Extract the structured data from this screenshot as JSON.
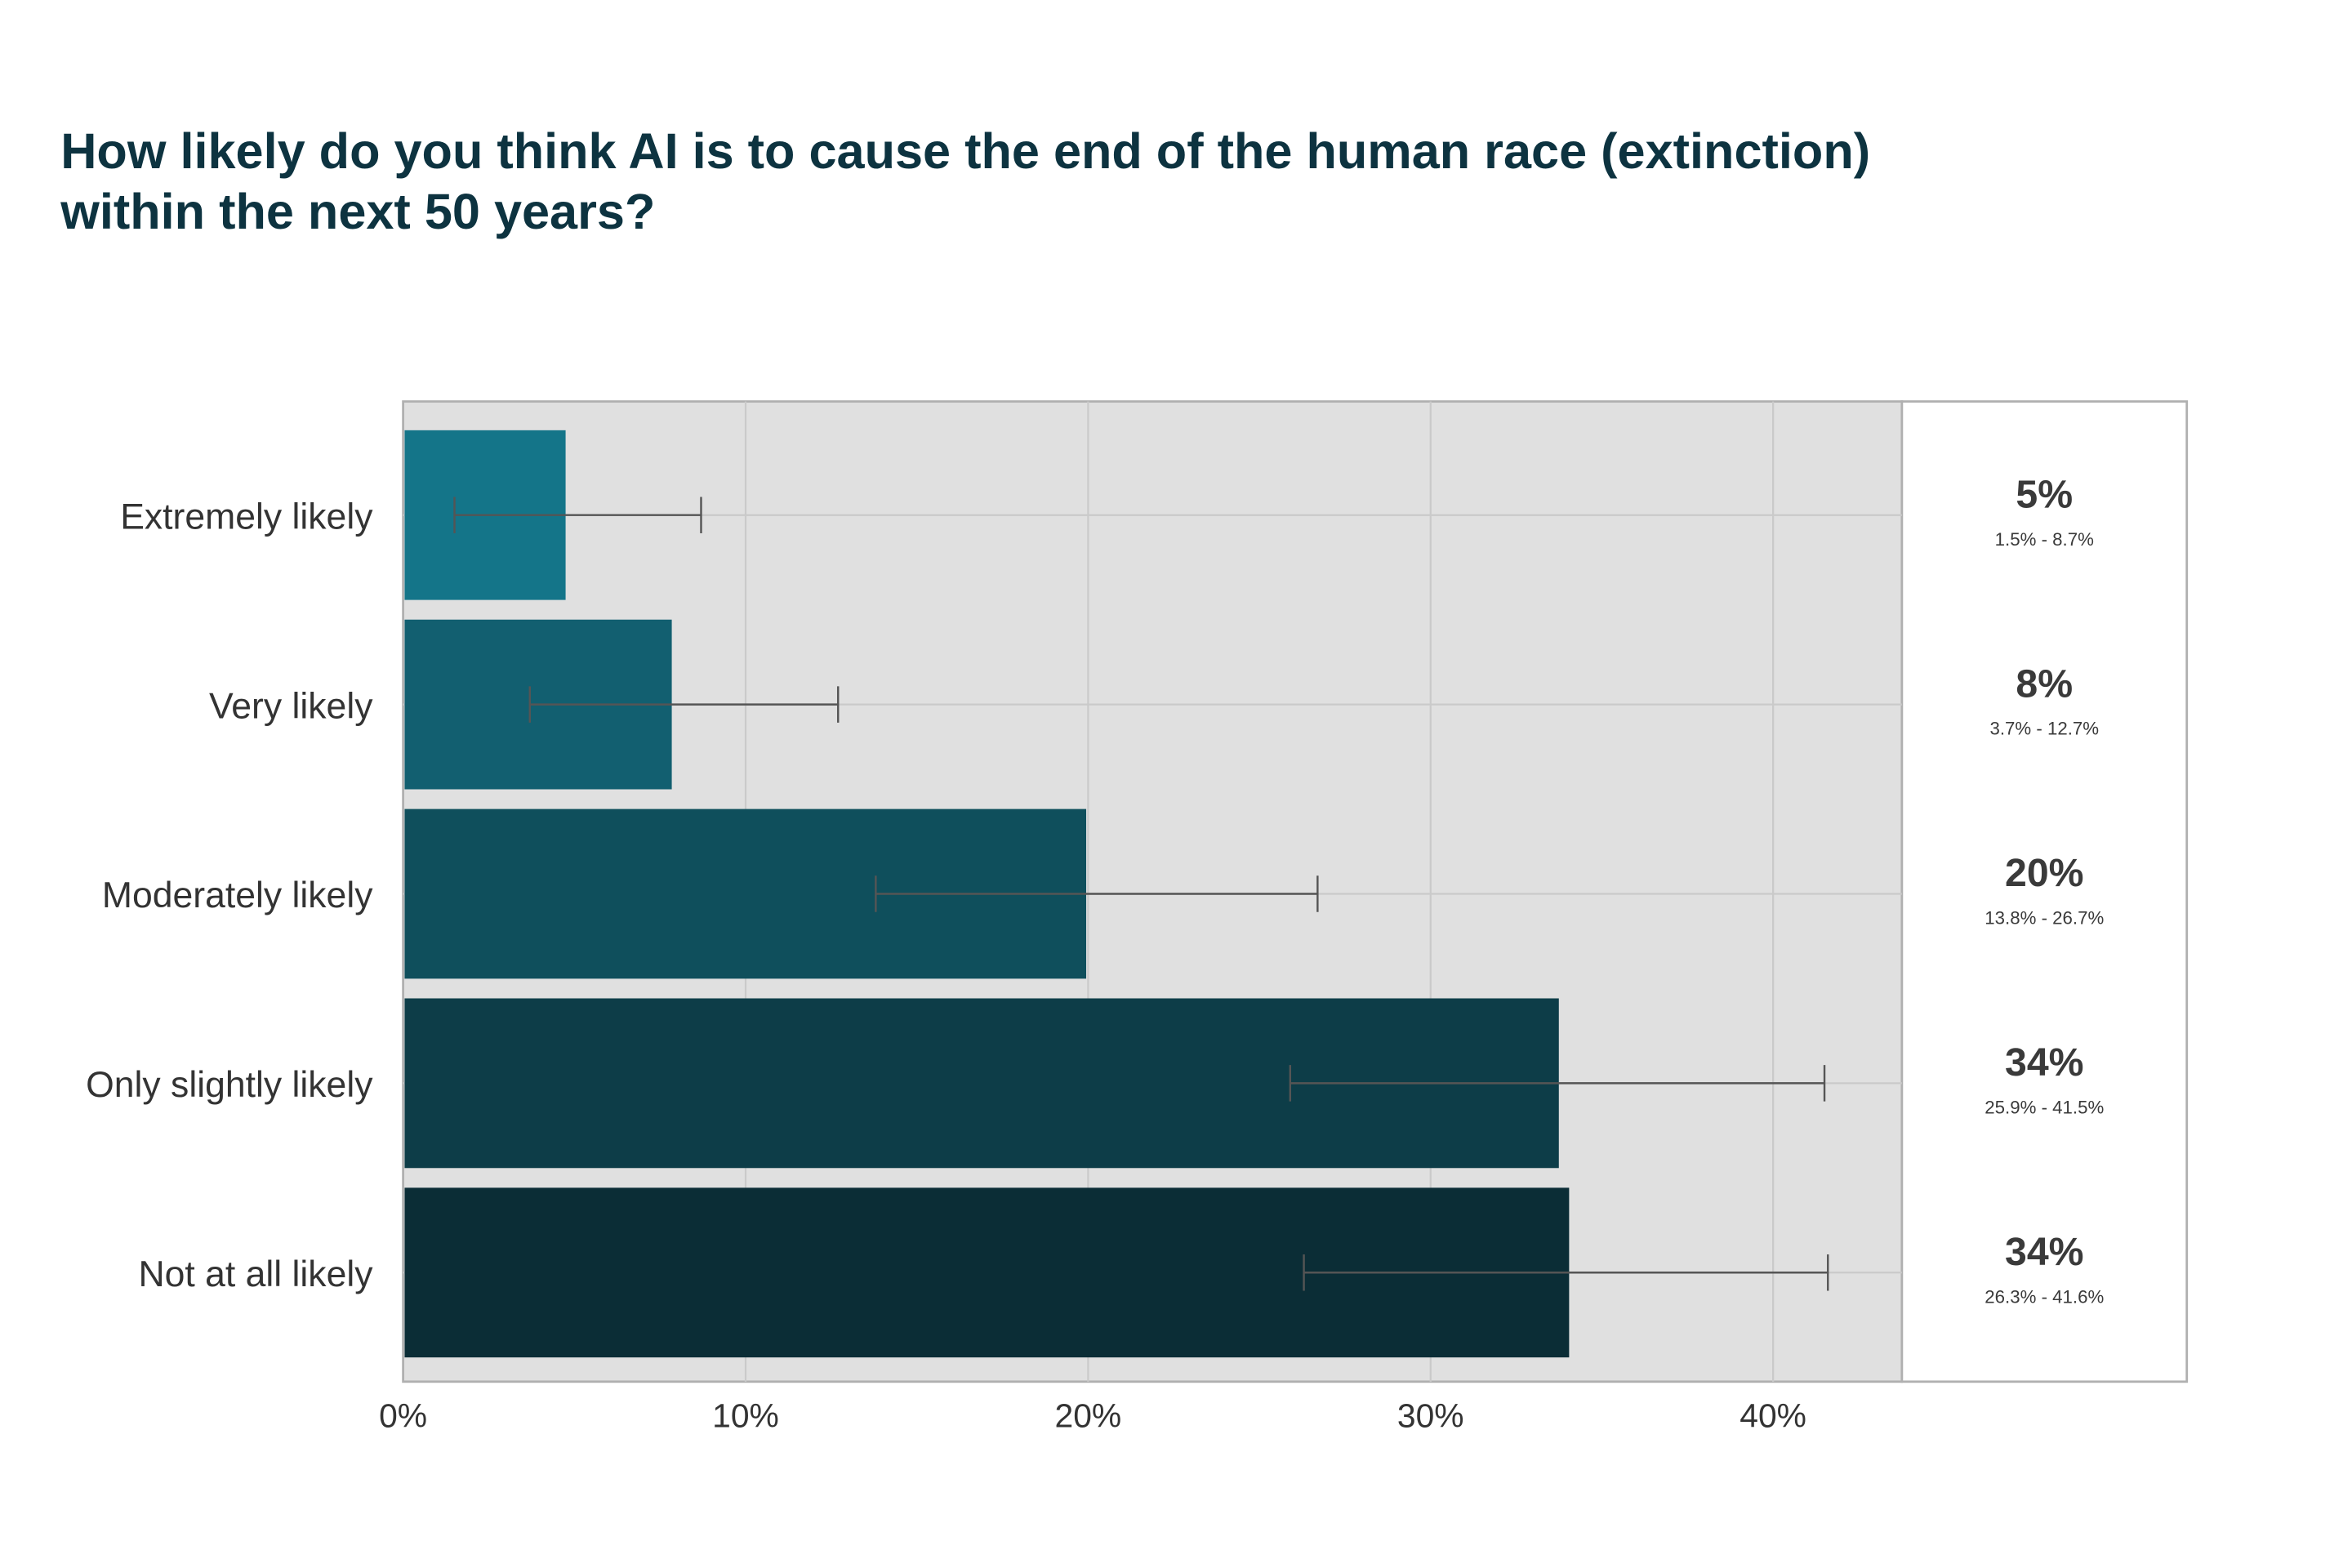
{
  "chart_data": {
    "type": "bar",
    "orientation": "horizontal",
    "title": "How likely do you think AI is to cause the end of the human race (extinction) within the next 50 years?",
    "title_lines": [
      "How likely do you think AI is to cause the end of the human race (extinction)",
      "within the next 50 years?"
    ],
    "xlabel": "",
    "ylabel": "",
    "xlim": [
      0,
      43.8
    ],
    "x_ticks": [
      0,
      10,
      20,
      30,
      40
    ],
    "x_tick_labels": [
      "0%",
      "10%",
      "20%",
      "30%",
      "40%"
    ],
    "grid": true,
    "categories": [
      "Extremely likely",
      "Very likely",
      "Moderately likely",
      "Only slightly likely",
      "Not at all likely"
    ],
    "values": [
      4.7,
      7.8,
      19.9,
      33.7,
      34.0
    ],
    "ci_low": [
      1.5,
      3.7,
      13.8,
      25.9,
      26.3
    ],
    "ci_high": [
      8.7,
      12.7,
      26.7,
      41.5,
      41.6
    ],
    "value_labels": [
      "5%",
      "8%",
      "20%",
      "34%",
      "34%"
    ],
    "ci_labels": [
      "1.5% - 8.7%",
      "3.7% - 12.7%",
      "13.8% - 26.7%",
      "25.9% - 41.5%",
      "26.3% - 41.6%"
    ],
    "colors": [
      "#147589",
      "#125f70",
      "#0f4f5c",
      "#0d3d48",
      "#0b2d36"
    ],
    "title_color": "#0d3340"
  }
}
